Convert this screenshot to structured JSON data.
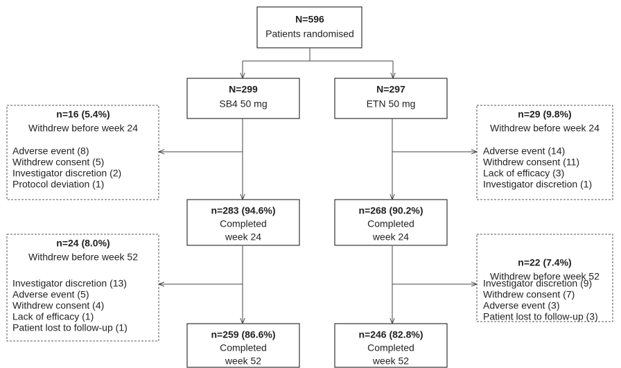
{
  "randomised": {
    "count": "N=596",
    "label": "Patients randomised"
  },
  "arms": [
    {
      "count": "N=299",
      "label": "SB4 50 mg",
      "withdrawn_24": {
        "count": "n=16 (5.4%)",
        "label": "Withdrew before week 24",
        "reasons": [
          "Adverse event (8)",
          "Withdrew consent (5)",
          "Investigator discretion (2)",
          "Protocol deviation (1)"
        ]
      },
      "completed_24": {
        "count": "n=283 (94.6%)",
        "lines": [
          "Completed",
          "week 24"
        ]
      },
      "withdrawn_52": {
        "count": "n=24 (8.0%)",
        "label": "Withdrew before week 52",
        "reasons": [
          "Investigator discretion (13)",
          "Adverse event (5)",
          "Withdrew consent (4)",
          "Lack of efficacy (1)",
          "Patient lost to follow-up (1)"
        ]
      },
      "completed_52": {
        "count": "n=259 (86.6%)",
        "lines": [
          "Completed",
          "week 52"
        ]
      }
    },
    {
      "count": "N=297",
      "label": "ETN 50 mg",
      "withdrawn_24": {
        "count": "n=29 (9.8%)",
        "label": "Withdrew before week 24",
        "reasons": [
          "Adverse event (14)",
          "Withdrew consent (11)",
          "Lack of efficacy (3)",
          "Investigator discretion (1)"
        ]
      },
      "completed_24": {
        "count": "n=268 (90.2%)",
        "lines": [
          "Completed",
          "week 24"
        ]
      },
      "withdrawn_52": {
        "count": "n=22 (7.4%)",
        "label": "Withdrew before week 52",
        "reasons": [
          "Investigator discretion (9)",
          "Withdrew consent (7)",
          "Adverse event (3)",
          "Patient lost to follow-up (3)"
        ]
      },
      "completed_52": {
        "count": "n=246 (82.8%)",
        "lines": [
          "Completed",
          "week 52"
        ]
      }
    }
  ]
}
